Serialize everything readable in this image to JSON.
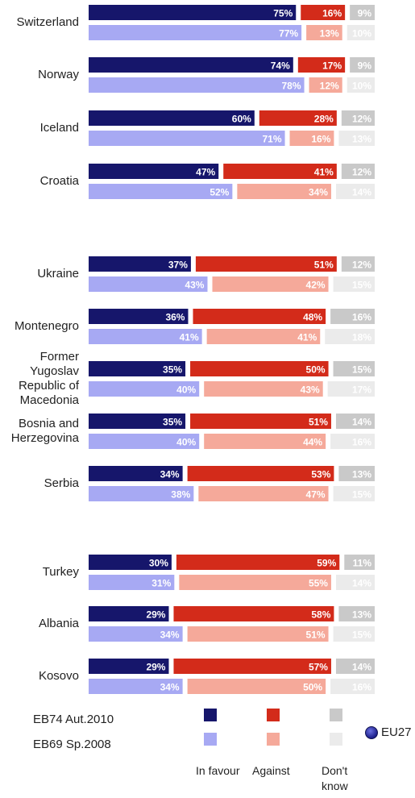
{
  "colors": {
    "current": [
      "#16166b",
      "#d32b1a",
      "#c9c9c9"
    ],
    "previous": [
      "#a7a9f3",
      "#f5a99a",
      "#ebebeb"
    ]
  },
  "legend": {
    "series_current": "EB74 Aut.2010",
    "series_previous": "EB69 Sp.2008",
    "categories": [
      "In favour",
      "Against",
      "Don't know"
    ],
    "eu_label": "EU27"
  },
  "chart_data": {
    "type": "bar",
    "orientation": "horizontal",
    "stacked": true,
    "categories": [
      "In favour",
      "Against",
      "Don't know"
    ],
    "groups": [
      {
        "name": "Switzerland",
        "current": [
          75,
          16,
          9
        ],
        "previous": [
          77,
          13,
          10
        ]
      },
      {
        "name": "Norway",
        "current": [
          74,
          17,
          9
        ],
        "previous": [
          78,
          12,
          10
        ]
      },
      {
        "name": "Iceland",
        "current": [
          60,
          28,
          12
        ],
        "previous": [
          71,
          16,
          13
        ]
      },
      {
        "name": "Croatia",
        "current": [
          47,
          41,
          12
        ],
        "previous": [
          52,
          34,
          14
        ]
      },
      {
        "name": "Ukraine",
        "current": [
          37,
          51,
          12
        ],
        "previous": [
          43,
          42,
          15
        ]
      },
      {
        "name": "Montenegro",
        "current": [
          36,
          48,
          16
        ],
        "previous": [
          41,
          41,
          18
        ]
      },
      {
        "name": "Former Yugoslav Republic of Macedonia",
        "current": [
          35,
          50,
          15
        ],
        "previous": [
          40,
          43,
          17
        ]
      },
      {
        "name": "Bosnia and Herzegovina",
        "current": [
          35,
          51,
          14
        ],
        "previous": [
          40,
          44,
          16
        ]
      },
      {
        "name": "Serbia",
        "current": [
          34,
          53,
          13
        ],
        "previous": [
          38,
          47,
          15
        ]
      },
      {
        "name": "Turkey",
        "current": [
          30,
          59,
          11
        ],
        "previous": [
          31,
          55,
          14
        ]
      },
      {
        "name": "Albania",
        "current": [
          29,
          58,
          13
        ],
        "previous": [
          34,
          51,
          15
        ]
      },
      {
        "name": "Kosovo",
        "current": [
          29,
          57,
          14
        ],
        "previous": [
          34,
          50,
          16
        ]
      }
    ]
  }
}
